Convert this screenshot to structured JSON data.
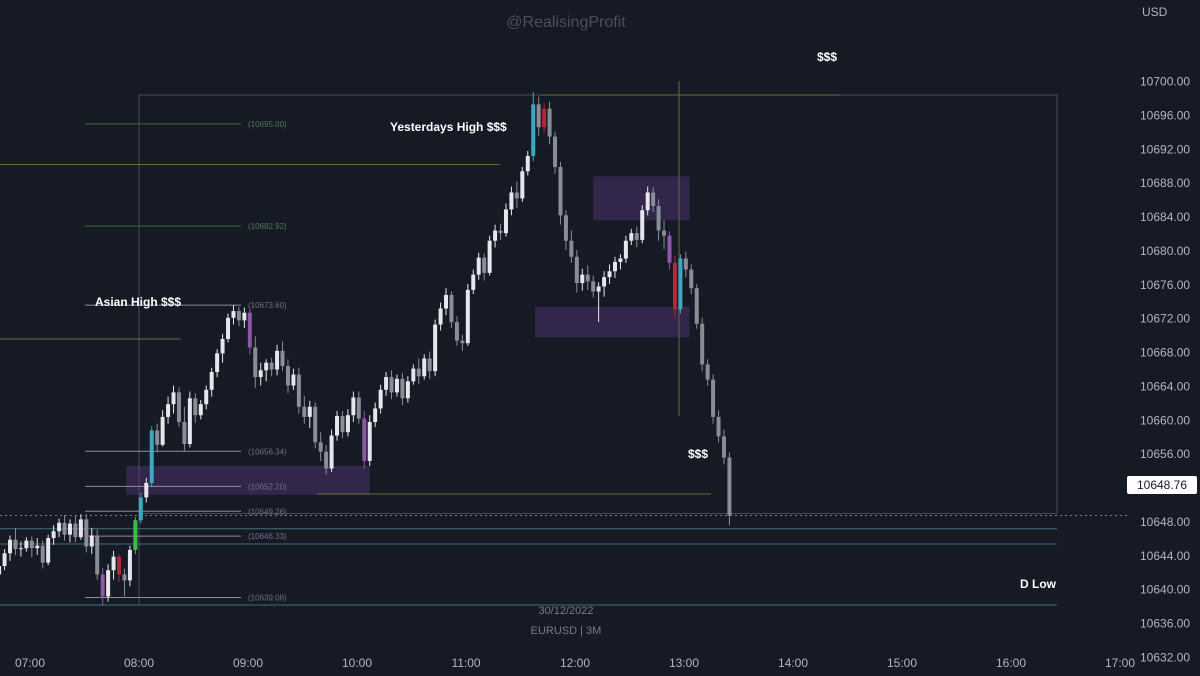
{
  "watermark": "@RealisingProfit",
  "currency": "USD",
  "symbol_line": "EURUSD | 3M",
  "date_line": "30/12/2022",
  "current_price": "10648.76",
  "colors": {
    "background": "#161a25",
    "up": "#e6e6ec",
    "down": "#8a8d97",
    "fvg_zone": "#3a2a55",
    "olive_line": "#6b6a3a",
    "teal_line": "#3f6f80",
    "fib_green": "#3c6b3c",
    "cyan_candle": "#3fa8c0",
    "purple_candle": "#8d58a8",
    "red_candle": "#b0283a",
    "green_candle": "#3bbf4a"
  },
  "annotations": {
    "asian_high": "Asian High $$$",
    "yesterdays_high": "Yesterdays High $$$",
    "dollar_top": "$$$",
    "dollar_mid": "$$$",
    "d_low": "D Low"
  },
  "fib_labels": [
    "(10695.00)",
    "(10682.92)",
    "(10673.60)",
    "(10656.34)",
    "(10652.20)",
    "(10649.26)",
    "(10646.33)",
    "(10639.08)"
  ],
  "chart_data": {
    "type": "candlestick",
    "title": "",
    "symbol": "EURUSD",
    "timeframe": "3M",
    "date": "30/12/2022",
    "ylim": [
      10628,
      10706
    ],
    "y_ticks": [
      "10700.00",
      "10696.00",
      "10692.00",
      "10688.00",
      "10684.00",
      "10680.00",
      "10676.00",
      "10672.00",
      "10668.00",
      "10664.00",
      "10660.00",
      "10656.00",
      "10652.00",
      "10648.00",
      "10644.00",
      "10640.00",
      "10636.00",
      "10632.00"
    ],
    "x_ticks": [
      "07:00",
      "08:00",
      "09:00",
      "10:00",
      "11:00",
      "12:00",
      "13:00",
      "14:00",
      "15:00",
      "16:00",
      "17:00"
    ],
    "x_tick_minutes": [
      420,
      480,
      540,
      600,
      660,
      720,
      780,
      840,
      900,
      960,
      1020
    ],
    "levels": {
      "asian_high": 10669.6,
      "yesterdays_high": 10690.2,
      "top_liquidity": 10698.4,
      "sell_side_liquidity": 10651.3,
      "d_low": 10638.2,
      "teal_1": 10647.2,
      "teal_2": 10645.4
    },
    "fib_levels": [
      10695.0,
      10682.92,
      10673.6,
      10656.34,
      10652.2,
      10649.26,
      10646.33,
      10639.08
    ],
    "zones": [
      {
        "name": "fvg-1",
        "t1": 473,
        "t2": 607,
        "low": 10651.2,
        "high": 10654.6
      },
      {
        "name": "fvg-2",
        "t1": 730,
        "t2": 783,
        "low": 10683.6,
        "high": 10688.8
      },
      {
        "name": "fvg-3",
        "t1": 698,
        "t2": 783,
        "low": 10669.8,
        "high": 10673.4
      }
    ],
    "candles": [
      {
        "t": 403,
        "o": 10641.8,
        "h": 10643.5,
        "l": 10640.9,
        "c": 10642.8
      },
      {
        "t": 406,
        "o": 10642.8,
        "h": 10644.8,
        "l": 10642.3,
        "c": 10644.3
      },
      {
        "t": 409,
        "o": 10644.3,
        "h": 10646.4,
        "l": 10643.4,
        "c": 10645.9
      },
      {
        "t": 412,
        "o": 10645.9,
        "h": 10647.3,
        "l": 10644.1,
        "c": 10644.8
      },
      {
        "t": 415,
        "o": 10644.8,
        "h": 10645.7,
        "l": 10643.9,
        "c": 10644.9
      },
      {
        "t": 418,
        "o": 10644.9,
        "h": 10646.2,
        "l": 10644.5,
        "c": 10645.8
      },
      {
        "t": 421,
        "o": 10645.8,
        "h": 10646.3,
        "l": 10643.8,
        "c": 10644.9
      },
      {
        "t": 424,
        "o": 10644.9,
        "h": 10646.1,
        "l": 10644.1,
        "c": 10645.2
      },
      {
        "t": 427,
        "o": 10645.2,
        "h": 10645.8,
        "l": 10642.5,
        "c": 10643.2
      },
      {
        "t": 430,
        "o": 10643.2,
        "h": 10646.5,
        "l": 10642.9,
        "c": 10646.1
      },
      {
        "t": 433,
        "o": 10646.1,
        "h": 10647.6,
        "l": 10645.3,
        "c": 10646.9
      },
      {
        "t": 436,
        "o": 10646.9,
        "h": 10648.4,
        "l": 10646.2,
        "c": 10647.9
      },
      {
        "t": 439,
        "o": 10647.9,
        "h": 10648.8,
        "l": 10645.8,
        "c": 10646.5
      },
      {
        "t": 442,
        "o": 10646.5,
        "h": 10648.3,
        "l": 10645.6,
        "c": 10647.8
      },
      {
        "t": 445,
        "o": 10647.8,
        "h": 10648.8,
        "l": 10645.6,
        "c": 10646.2
      },
      {
        "t": 448,
        "o": 10646.2,
        "h": 10648.9,
        "l": 10645.9,
        "c": 10648.3
      },
      {
        "t": 451,
        "o": 10648.3,
        "h": 10648.9,
        "l": 10644.4,
        "c": 10645.1
      },
      {
        "t": 454,
        "o": 10645.1,
        "h": 10647.3,
        "l": 10644.2,
        "c": 10646.4
      },
      {
        "t": 457,
        "o": 10646.4,
        "h": 10647.1,
        "l": 10641.2,
        "c": 10641.8
      },
      {
        "t": 460,
        "o": 10641.8,
        "h": 10642.6,
        "l": 10638.1,
        "c": 10639.2
      },
      {
        "t": 463,
        "o": 10639.2,
        "h": 10643.0,
        "l": 10638.6,
        "c": 10642.3
      },
      {
        "t": 466,
        "o": 10642.3,
        "h": 10644.6,
        "l": 10641.2,
        "c": 10643.9
      },
      {
        "t": 469,
        "o": 10643.9,
        "h": 10644.2,
        "l": 10640.9,
        "c": 10641.8
      },
      {
        "t": 472,
        "o": 10641.8,
        "h": 10642.5,
        "l": 10639.2,
        "c": 10641.1
      },
      {
        "t": 475,
        "o": 10641.1,
        "h": 10645.2,
        "l": 10640.4,
        "c": 10644.7
      },
      {
        "t": 478,
        "o": 10644.7,
        "h": 10648.6,
        "l": 10644.2,
        "c": 10648.2
      },
      {
        "t": 481,
        "o": 10648.2,
        "h": 10651.4,
        "l": 10647.8,
        "c": 10650.9
      },
      {
        "t": 484,
        "o": 10650.9,
        "h": 10653.2,
        "l": 10650.3,
        "c": 10652.6
      },
      {
        "t": 487,
        "o": 10652.6,
        "h": 10659.3,
        "l": 10652.1,
        "c": 10658.8
      },
      {
        "t": 490,
        "o": 10658.8,
        "h": 10659.6,
        "l": 10656.2,
        "c": 10657.1
      },
      {
        "t": 493,
        "o": 10657.1,
        "h": 10661.2,
        "l": 10656.9,
        "c": 10660.4
      },
      {
        "t": 496,
        "o": 10660.4,
        "h": 10662.8,
        "l": 10659.6,
        "c": 10661.9
      },
      {
        "t": 499,
        "o": 10661.9,
        "h": 10664.1,
        "l": 10660.8,
        "c": 10663.3
      },
      {
        "t": 502,
        "o": 10663.3,
        "h": 10663.9,
        "l": 10659.2,
        "c": 10659.8
      },
      {
        "t": 505,
        "o": 10659.8,
        "h": 10661.6,
        "l": 10656.4,
        "c": 10657.2
      },
      {
        "t": 508,
        "o": 10657.2,
        "h": 10663.4,
        "l": 10656.8,
        "c": 10662.6
      },
      {
        "t": 511,
        "o": 10662.6,
        "h": 10663.2,
        "l": 10659.7,
        "c": 10660.6
      },
      {
        "t": 514,
        "o": 10660.6,
        "h": 10662.4,
        "l": 10660.1,
        "c": 10661.9
      },
      {
        "t": 517,
        "o": 10661.9,
        "h": 10664.1,
        "l": 10661.3,
        "c": 10663.6
      },
      {
        "t": 520,
        "o": 10663.6,
        "h": 10666.2,
        "l": 10662.8,
        "c": 10665.7
      },
      {
        "t": 523,
        "o": 10665.7,
        "h": 10668.4,
        "l": 10665.1,
        "c": 10667.9
      },
      {
        "t": 526,
        "o": 10667.9,
        "h": 10670.2,
        "l": 10666.8,
        "c": 10669.6
      },
      {
        "t": 529,
        "o": 10669.6,
        "h": 10672.6,
        "l": 10669.2,
        "c": 10672.1
      },
      {
        "t": 532,
        "o": 10672.1,
        "h": 10673.6,
        "l": 10671.3,
        "c": 10672.9
      },
      {
        "t": 535,
        "o": 10672.9,
        "h": 10673.4,
        "l": 10671.1,
        "c": 10671.8
      },
      {
        "t": 538,
        "o": 10671.8,
        "h": 10673.3,
        "l": 10670.9,
        "c": 10672.7
      },
      {
        "t": 541,
        "o": 10672.7,
        "h": 10673.1,
        "l": 10667.8,
        "c": 10668.6
      },
      {
        "t": 544,
        "o": 10668.6,
        "h": 10669.9,
        "l": 10663.8,
        "c": 10665.1
      },
      {
        "t": 547,
        "o": 10665.1,
        "h": 10666.8,
        "l": 10664.1,
        "c": 10665.9
      },
      {
        "t": 550,
        "o": 10665.9,
        "h": 10667.2,
        "l": 10664.6,
        "c": 10666.8
      },
      {
        "t": 553,
        "o": 10666.8,
        "h": 10667.4,
        "l": 10665.2,
        "c": 10666.0
      },
      {
        "t": 556,
        "o": 10666.0,
        "h": 10668.9,
        "l": 10665.3,
        "c": 10668.2
      },
      {
        "t": 559,
        "o": 10668.2,
        "h": 10669.3,
        "l": 10665.8,
        "c": 10666.4
      },
      {
        "t": 562,
        "o": 10666.4,
        "h": 10667.2,
        "l": 10663.2,
        "c": 10664.1
      },
      {
        "t": 565,
        "o": 10664.1,
        "h": 10666.1,
        "l": 10663.6,
        "c": 10665.4
      },
      {
        "t": 568,
        "o": 10665.4,
        "h": 10666.2,
        "l": 10660.8,
        "c": 10661.6
      },
      {
        "t": 571,
        "o": 10661.6,
        "h": 10662.9,
        "l": 10659.6,
        "c": 10660.4
      },
      {
        "t": 574,
        "o": 10660.4,
        "h": 10662.3,
        "l": 10659.1,
        "c": 10661.6
      },
      {
        "t": 577,
        "o": 10661.6,
        "h": 10662.1,
        "l": 10656.7,
        "c": 10657.4
      },
      {
        "t": 580,
        "o": 10657.4,
        "h": 10658.6,
        "l": 10655.2,
        "c": 10656.3
      },
      {
        "t": 583,
        "o": 10656.3,
        "h": 10657.1,
        "l": 10653.6,
        "c": 10654.3
      },
      {
        "t": 586,
        "o": 10654.3,
        "h": 10658.9,
        "l": 10653.9,
        "c": 10658.2
      },
      {
        "t": 589,
        "o": 10658.2,
        "h": 10661.1,
        "l": 10657.6,
        "c": 10660.5
      },
      {
        "t": 592,
        "o": 10660.5,
        "h": 10661.1,
        "l": 10657.9,
        "c": 10658.6
      },
      {
        "t": 595,
        "o": 10658.6,
        "h": 10661.3,
        "l": 10658.1,
        "c": 10660.6
      },
      {
        "t": 598,
        "o": 10660.6,
        "h": 10663.4,
        "l": 10659.8,
        "c": 10662.7
      },
      {
        "t": 601,
        "o": 10662.7,
        "h": 10663.4,
        "l": 10659.6,
        "c": 10660.2
      },
      {
        "t": 604,
        "o": 10660.2,
        "h": 10661.1,
        "l": 10654.3,
        "c": 10655.2
      },
      {
        "t": 607,
        "o": 10655.2,
        "h": 10660.6,
        "l": 10654.6,
        "c": 10659.8
      },
      {
        "t": 610,
        "o": 10659.8,
        "h": 10662.1,
        "l": 10659.2,
        "c": 10661.4
      },
      {
        "t": 613,
        "o": 10661.4,
        "h": 10664.2,
        "l": 10660.8,
        "c": 10663.6
      },
      {
        "t": 616,
        "o": 10663.6,
        "h": 10665.7,
        "l": 10662.9,
        "c": 10665.1
      },
      {
        "t": 619,
        "o": 10665.1,
        "h": 10665.9,
        "l": 10662.5,
        "c": 10663.3
      },
      {
        "t": 622,
        "o": 10663.3,
        "h": 10665.4,
        "l": 10662.8,
        "c": 10664.9
      },
      {
        "t": 625,
        "o": 10664.9,
        "h": 10665.6,
        "l": 10661.8,
        "c": 10662.6
      },
      {
        "t": 628,
        "o": 10662.6,
        "h": 10665.2,
        "l": 10662.1,
        "c": 10664.6
      },
      {
        "t": 631,
        "o": 10664.6,
        "h": 10666.6,
        "l": 10664.2,
        "c": 10666.1
      },
      {
        "t": 634,
        "o": 10666.1,
        "h": 10667.3,
        "l": 10664.3,
        "c": 10665.2
      },
      {
        "t": 637,
        "o": 10665.2,
        "h": 10667.8,
        "l": 10664.8,
        "c": 10667.3
      },
      {
        "t": 640,
        "o": 10667.3,
        "h": 10668.1,
        "l": 10664.9,
        "c": 10665.8
      },
      {
        "t": 643,
        "o": 10665.8,
        "h": 10671.9,
        "l": 10665.2,
        "c": 10671.3
      },
      {
        "t": 646,
        "o": 10671.3,
        "h": 10673.9,
        "l": 10670.6,
        "c": 10673.2
      },
      {
        "t": 649,
        "o": 10673.2,
        "h": 10675.6,
        "l": 10672.4,
        "c": 10674.8
      },
      {
        "t": 652,
        "o": 10674.8,
        "h": 10675.2,
        "l": 10670.9,
        "c": 10671.6
      },
      {
        "t": 655,
        "o": 10671.6,
        "h": 10672.3,
        "l": 10668.8,
        "c": 10669.4
      },
      {
        "t": 658,
        "o": 10669.4,
        "h": 10670.1,
        "l": 10668.2,
        "c": 10669.1
      },
      {
        "t": 661,
        "o": 10669.1,
        "h": 10676.1,
        "l": 10668.8,
        "c": 10675.4
      },
      {
        "t": 664,
        "o": 10675.4,
        "h": 10677.8,
        "l": 10674.9,
        "c": 10677.2
      },
      {
        "t": 667,
        "o": 10677.2,
        "h": 10679.8,
        "l": 10676.6,
        "c": 10679.2
      },
      {
        "t": 670,
        "o": 10679.2,
        "h": 10679.7,
        "l": 10676.5,
        "c": 10677.4
      },
      {
        "t": 673,
        "o": 10677.4,
        "h": 10681.8,
        "l": 10677.1,
        "c": 10681.2
      },
      {
        "t": 676,
        "o": 10681.2,
        "h": 10683.1,
        "l": 10680.4,
        "c": 10682.4
      },
      {
        "t": 679,
        "o": 10682.4,
        "h": 10683.2,
        "l": 10681.3,
        "c": 10682.1
      },
      {
        "t": 682,
        "o": 10682.1,
        "h": 10685.6,
        "l": 10681.7,
        "c": 10684.9
      },
      {
        "t": 685,
        "o": 10684.9,
        "h": 10687.6,
        "l": 10684.2,
        "c": 10686.9
      },
      {
        "t": 688,
        "o": 10686.9,
        "h": 10688.2,
        "l": 10685.1,
        "c": 10686.2
      },
      {
        "t": 691,
        "o": 10686.2,
        "h": 10689.9,
        "l": 10685.8,
        "c": 10689.4
      },
      {
        "t": 694,
        "o": 10689.4,
        "h": 10691.8,
        "l": 10688.9,
        "c": 10691.2
      },
      {
        "t": 697,
        "o": 10691.2,
        "h": 10698.8,
        "l": 10690.6,
        "c": 10697.3
      },
      {
        "t": 700,
        "o": 10697.3,
        "h": 10698.2,
        "l": 10693.6,
        "c": 10694.6
      },
      {
        "t": 703,
        "o": 10694.6,
        "h": 10697.4,
        "l": 10693.9,
        "c": 10696.8
      },
      {
        "t": 706,
        "o": 10696.8,
        "h": 10697.6,
        "l": 10692.6,
        "c": 10693.5
      },
      {
        "t": 709,
        "o": 10693.5,
        "h": 10694.1,
        "l": 10689.1,
        "c": 10689.9
      },
      {
        "t": 712,
        "o": 10689.9,
        "h": 10690.5,
        "l": 10683.1,
        "c": 10684.2
      },
      {
        "t": 715,
        "o": 10684.2,
        "h": 10684.8,
        "l": 10680.1,
        "c": 10681.2
      },
      {
        "t": 718,
        "o": 10681.2,
        "h": 10682.4,
        "l": 10678.6,
        "c": 10679.3
      },
      {
        "t": 721,
        "o": 10679.3,
        "h": 10680.1,
        "l": 10675.1,
        "c": 10676.2
      },
      {
        "t": 724,
        "o": 10676.2,
        "h": 10677.9,
        "l": 10675.3,
        "c": 10677.2
      },
      {
        "t": 727,
        "o": 10677.2,
        "h": 10678.3,
        "l": 10675.4,
        "c": 10676.4
      },
      {
        "t": 730,
        "o": 10676.4,
        "h": 10677.1,
        "l": 10674.5,
        "c": 10675.2
      },
      {
        "t": 733,
        "o": 10675.2,
        "h": 10676.3,
        "l": 10671.6,
        "c": 10675.8
      },
      {
        "t": 736,
        "o": 10675.8,
        "h": 10677.6,
        "l": 10674.6,
        "c": 10676.9
      },
      {
        "t": 739,
        "o": 10676.9,
        "h": 10678.4,
        "l": 10676.1,
        "c": 10677.6
      },
      {
        "t": 742,
        "o": 10677.6,
        "h": 10679.3,
        "l": 10676.8,
        "c": 10678.7
      },
      {
        "t": 745,
        "o": 10678.7,
        "h": 10679.6,
        "l": 10677.8,
        "c": 10679.1
      },
      {
        "t": 748,
        "o": 10679.1,
        "h": 10681.8,
        "l": 10678.6,
        "c": 10681.2
      },
      {
        "t": 751,
        "o": 10681.2,
        "h": 10682.6,
        "l": 10680.7,
        "c": 10682.1
      },
      {
        "t": 754,
        "o": 10682.1,
        "h": 10682.9,
        "l": 10680.4,
        "c": 10681.3
      },
      {
        "t": 757,
        "o": 10681.3,
        "h": 10685.4,
        "l": 10680.9,
        "c": 10684.8
      },
      {
        "t": 760,
        "o": 10684.8,
        "h": 10687.6,
        "l": 10684.2,
        "c": 10686.9
      },
      {
        "t": 763,
        "o": 10686.9,
        "h": 10687.5,
        "l": 10684.6,
        "c": 10685.3
      },
      {
        "t": 766,
        "o": 10685.3,
        "h": 10686.1,
        "l": 10681.2,
        "c": 10682.4
      },
      {
        "t": 769,
        "o": 10682.4,
        "h": 10683.6,
        "l": 10680.2,
        "c": 10681.8
      },
      {
        "t": 772,
        "o": 10681.8,
        "h": 10682.3,
        "l": 10677.8,
        "c": 10678.6
      },
      {
        "t": 775,
        "o": 10678.6,
        "h": 10679.4,
        "l": 10672.1,
        "c": 10673.1
      },
      {
        "t": 778,
        "o": 10673.1,
        "h": 10679.6,
        "l": 10672.6,
        "c": 10679.1
      },
      {
        "t": 781,
        "o": 10679.1,
        "h": 10679.9,
        "l": 10676.9,
        "c": 10677.8
      },
      {
        "t": 784,
        "o": 10677.8,
        "h": 10678.4,
        "l": 10674.9,
        "c": 10675.6
      },
      {
        "t": 787,
        "o": 10675.6,
        "h": 10676.1,
        "l": 10670.8,
        "c": 10671.4
      },
      {
        "t": 790,
        "o": 10671.4,
        "h": 10672.1,
        "l": 10665.8,
        "c": 10666.6
      },
      {
        "t": 793,
        "o": 10666.6,
        "h": 10667.2,
        "l": 10664.1,
        "c": 10664.8
      },
      {
        "t": 796,
        "o": 10664.8,
        "h": 10665.4,
        "l": 10659.6,
        "c": 10660.4
      },
      {
        "t": 799,
        "o": 10660.4,
        "h": 10661.2,
        "l": 10657.4,
        "c": 10658.1
      },
      {
        "t": 802,
        "o": 10658.1,
        "h": 10658.9,
        "l": 10654.8,
        "c": 10655.6
      },
      {
        "t": 805,
        "o": 10655.6,
        "h": 10656.2,
        "l": 10647.6,
        "c": 10648.76
      }
    ],
    "special_candles": [
      {
        "t": 460,
        "color": "purple"
      },
      {
        "t": 469,
        "color": "red"
      },
      {
        "t": 478,
        "color": "green"
      },
      {
        "t": 481,
        "color": "cyan"
      },
      {
        "t": 487,
        "color": "cyan"
      },
      {
        "t": 541,
        "color": "purple"
      },
      {
        "t": 604,
        "color": "purple"
      },
      {
        "t": 697,
        "color": "cyan"
      },
      {
        "t": 703,
        "color": "red"
      },
      {
        "t": 772,
        "color": "purple"
      },
      {
        "t": 775,
        "color": "red"
      },
      {
        "t": 778,
        "color": "cyan"
      }
    ]
  }
}
